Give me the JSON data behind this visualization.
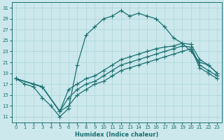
{
  "xlabel": "Humidex (Indice chaleur)",
  "bg_color": "#cce8ec",
  "grid_color": "#aad4d8",
  "line_color": "#1a7070",
  "xlim": [
    -0.5,
    23.5
  ],
  "ylim": [
    10,
    32
  ],
  "xticks": [
    0,
    1,
    2,
    3,
    4,
    5,
    6,
    7,
    8,
    9,
    10,
    11,
    12,
    13,
    14,
    15,
    16,
    17,
    18,
    19,
    20,
    21,
    22,
    23
  ],
  "yticks": [
    11,
    13,
    15,
    17,
    19,
    21,
    23,
    25,
    27,
    29,
    31
  ],
  "line1_x": [
    0,
    1,
    2,
    3,
    4,
    5,
    6,
    7,
    8,
    9,
    10,
    11,
    12,
    13,
    14,
    15,
    16,
    17,
    18,
    19,
    20,
    21,
    22,
    23
  ],
  "line1_y": [
    18.0,
    17.0,
    16.5,
    14.5,
    13.0,
    11.0,
    12.5,
    20.5,
    26.0,
    27.5,
    29.0,
    29.5,
    30.5,
    29.5,
    30.0,
    29.5,
    29.0,
    27.5,
    25.5,
    24.5,
    23.0,
    21.0,
    20.5,
    19.0
  ],
  "line2_x": [
    0,
    2,
    3,
    5,
    6,
    7,
    8,
    9,
    10,
    11,
    12,
    13,
    14,
    15,
    16,
    17,
    18,
    19,
    20,
    21,
    22,
    23
  ],
  "line2_y": [
    18.0,
    17.0,
    16.5,
    12.0,
    16.0,
    17.0,
    18.0,
    18.5,
    19.5,
    20.5,
    21.5,
    22.0,
    22.5,
    23.0,
    23.5,
    23.8,
    24.0,
    24.5,
    24.3,
    21.5,
    20.5,
    19.0
  ],
  "line3_x": [
    0,
    2,
    3,
    5,
    6,
    7,
    8,
    9,
    10,
    11,
    12,
    13,
    14,
    15,
    16,
    17,
    18,
    19,
    20,
    21,
    22,
    23
  ],
  "line3_y": [
    18.0,
    17.0,
    16.5,
    12.0,
    14.5,
    16.0,
    17.0,
    17.5,
    18.5,
    19.5,
    20.5,
    21.0,
    21.5,
    22.0,
    22.5,
    23.0,
    23.5,
    24.0,
    23.8,
    20.5,
    19.5,
    18.5
  ],
  "line4_x": [
    0,
    2,
    3,
    5,
    6,
    7,
    8,
    9,
    10,
    11,
    12,
    13,
    14,
    15,
    16,
    17,
    18,
    19,
    20,
    21,
    22,
    23
  ],
  "line4_y": [
    18.0,
    17.0,
    16.5,
    12.0,
    13.0,
    15.0,
    16.0,
    17.0,
    17.5,
    18.5,
    19.5,
    20.0,
    20.5,
    21.0,
    21.5,
    22.0,
    22.5,
    23.0,
    23.5,
    20.0,
    19.0,
    18.0
  ]
}
